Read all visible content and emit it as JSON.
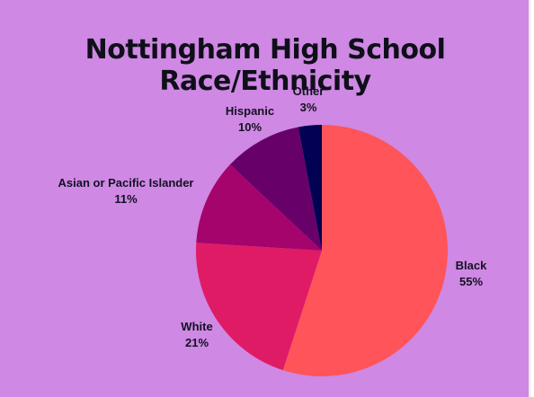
{
  "chart_data": {
    "type": "pie",
    "title": "Nottingham High School Race/Ethnicity",
    "slices": [
      {
        "label": "Black",
        "value": 55,
        "display": "55%",
        "color": "#ff5459"
      },
      {
        "label": "White",
        "value": 21,
        "display": "21%",
        "color": "#df1b65"
      },
      {
        "label": "Asian or Pacific Islander",
        "value": 11,
        "display": "11%",
        "color": "#a5046c"
      },
      {
        "label": "Hispanic",
        "value": 10,
        "display": "10%",
        "color": "#68006a"
      },
      {
        "label": "Other",
        "value": 3,
        "display": "3%",
        "color": "#020152"
      }
    ],
    "start_angle_deg": 0,
    "direction": "clockwise",
    "legend": "none"
  },
  "colors": {
    "background": "#cf88e3",
    "text": "#111122"
  }
}
